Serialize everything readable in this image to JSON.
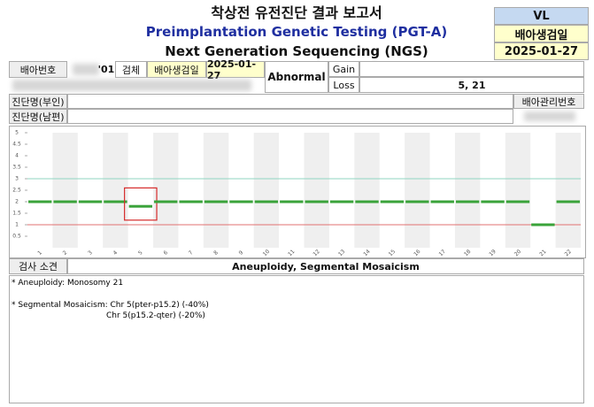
{
  "header": {
    "title": "착상전 유전진단 결과 보고서",
    "subtitle": "Preimplantation Genetic Testing (PGT-A)",
    "method": "Next Generation Sequencing (NGS)"
  },
  "side_box": {
    "code": "VL",
    "label": "배아생검일",
    "date": "2025-01-27"
  },
  "info": {
    "embryo_no_label": "배아번호",
    "embryo_no": "'01",
    "specimen_label": "검체",
    "specimen": "배아생검일",
    "specimen_date": "2025-01-27",
    "result": "Abnormal",
    "gain_label": "Gain",
    "loss_label": "Loss",
    "loss": "5, 21",
    "diag_wife_label": "진단명(부인)",
    "diag_husband_label": "진단명(남편)",
    "embryo_mgmt_label": "배아관리번호"
  },
  "chart_data": {
    "type": "line",
    "categories": [
      "1",
      "2",
      "3",
      "4",
      "5",
      "6",
      "7",
      "8",
      "9",
      "10",
      "11",
      "12",
      "13",
      "14",
      "15",
      "16",
      "17",
      "18",
      "19",
      "20",
      "21",
      "22"
    ],
    "values": [
      2,
      2,
      2,
      2,
      1.8,
      2,
      2,
      2,
      2,
      2,
      2,
      2,
      2,
      2,
      2,
      2,
      2,
      2,
      2,
      2,
      1,
      2
    ],
    "color": "#3aa33a",
    "ylim": [
      0,
      5
    ],
    "yticks": [
      0.5,
      1,
      1.5,
      2,
      2.5,
      3,
      3.5,
      4,
      4.5,
      5
    ],
    "ref_lines": [
      {
        "value": 3,
        "color": "#8fd6c0"
      },
      {
        "value": 1,
        "color": "#e07070"
      }
    ],
    "highlight_category": "5"
  },
  "findings": {
    "label": "검사 소견",
    "summary": "Aneuploidy, Segmental Mosaicism",
    "notes": [
      "* Aneuploidy: Monosomy 21",
      "* Segmental Mosaicism: Chr 5(pter-p15.2) (-40%)",
      "Chr 5(p15.2-qter) (-20%)"
    ]
  }
}
